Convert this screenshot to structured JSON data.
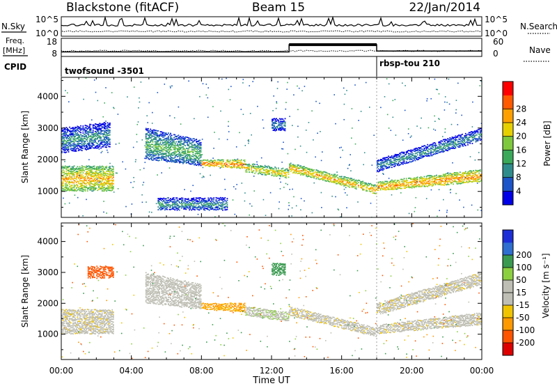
{
  "header": {
    "title": "Blackstone (fitACF)",
    "beam": "Beam 15",
    "date": "22/Jan/2014"
  },
  "noise_panel": {
    "left_label": "N.Sky",
    "right_label": "N.Search",
    "left_ticks": [
      "10^5",
      "10^0"
    ],
    "right_ticks": [
      "10^5",
      "10^0"
    ]
  },
  "freq_panel": {
    "label_top": "Freq.",
    "label_unit": "[MHz]",
    "left_ticks": [
      "18",
      "8"
    ],
    "right_ticks": [
      "60",
      "0"
    ],
    "right_label": "Nave"
  },
  "cpid_panel": {
    "label": "CPID",
    "programs": [
      "twofsound -3501",
      "rbsp-tou 210"
    ]
  },
  "time_axis": {
    "label": "Time UT",
    "ticks": [
      "00:00",
      "04:00",
      "08:00",
      "12:00",
      "16:00",
      "20:00",
      "00:00"
    ]
  },
  "range_axis": {
    "label": "Slant Range [km]",
    "ticks": [
      "1000",
      "2000",
      "3000",
      "4000"
    ]
  },
  "power_scale": {
    "label": "Power [dB]",
    "ticks": [
      "4",
      "8",
      "12",
      "16",
      "20",
      "24",
      "28"
    ],
    "colors": [
      "#0000e6",
      "#1c55c8",
      "#2f8c8c",
      "#3aaa5a",
      "#7dc83c",
      "#e6d000",
      "#ffa000",
      "#ff5a00",
      "#ff0000"
    ]
  },
  "velocity_scale": {
    "label": "Velocity [m s⁻¹]",
    "ticks": [
      "-200",
      "-100",
      "-50",
      "-15",
      "15",
      "50",
      "100",
      "200"
    ],
    "colors": [
      "#dd0000",
      "#ff5500",
      "#ff9900",
      "#f0c400",
      "#bebeb4",
      "#bebeb4",
      "#8cd040",
      "#3a9a50",
      "#2e6fd0",
      "#1c2fd6"
    ]
  },
  "chart_data": [
    {
      "type": "heatmap",
      "name": "power",
      "xlabel": "Time UT",
      "ylabel": "Slant Range [km]",
      "xlim": [
        0,
        24
      ],
      "ylim": [
        180,
        4600
      ],
      "colorbar_label": "Power [dB]",
      "features": [
        {
          "t": [
            0.0,
            3.0
          ],
          "range_start": [
            1000,
            1800
          ],
          "range_end": [
            1000,
            1800
          ],
          "power_db": 24
        },
        {
          "t": [
            0.0,
            2.8
          ],
          "range_start": [
            2200,
            3000
          ],
          "range_end": [
            2400,
            3200
          ],
          "power_db": 10
        },
        {
          "t": [
            4.8,
            8.0
          ],
          "range_start": [
            2000,
            3000
          ],
          "range_end": [
            1800,
            2600
          ],
          "power_db": 14
        },
        {
          "t": [
            8.0,
            10.5
          ],
          "range_start": [
            1800,
            2000
          ],
          "range_end": [
            1700,
            2000
          ],
          "power_db": 27
        },
        {
          "t": [
            10.5,
            13.0
          ],
          "range_start": [
            1600,
            1900
          ],
          "range_end": [
            1400,
            1700
          ],
          "power_db": 22
        },
        {
          "t": [
            13.0,
            18.0
          ],
          "range_start": [
            1600,
            1900
          ],
          "range_end": [
            900,
            1200
          ],
          "power_db": 24
        },
        {
          "t": [
            18.0,
            24.0
          ],
          "range_start": [
            1000,
            1300
          ],
          "range_end": [
            1300,
            1700
          ],
          "power_db": 26
        },
        {
          "t": [
            18.0,
            24.0
          ],
          "range_start": [
            1600,
            2000
          ],
          "range_end": [
            2600,
            3000
          ],
          "power_db": 10
        },
        {
          "t": [
            12.0,
            12.8
          ],
          "range_start": [
            2900,
            3300
          ],
          "range_end": [
            2900,
            3300
          ],
          "power_db": 8
        },
        {
          "t": [
            5.5,
            9.5
          ],
          "range_start": [
            400,
            800
          ],
          "range_end": [
            400,
            800
          ],
          "power_db": 10
        }
      ]
    },
    {
      "type": "heatmap",
      "name": "velocity",
      "xlabel": "Time UT",
      "ylabel": "Slant Range [km]",
      "xlim": [
        0,
        24
      ],
      "ylim": [
        180,
        4600
      ],
      "colorbar_label": "Velocity [m s⁻¹]",
      "features": [
        {
          "t": [
            0.0,
            3.0
          ],
          "range_start": [
            1000,
            1800
          ],
          "range_end": [
            1000,
            1800
          ],
          "velocity": 0
        },
        {
          "t": [
            1.5,
            3.0
          ],
          "range_start": [
            2800,
            3200
          ],
          "range_end": [
            2800,
            3200
          ],
          "velocity": -180
        },
        {
          "t": [
            4.8,
            8.0
          ],
          "range_start": [
            2000,
            3000
          ],
          "range_end": [
            1800,
            2600
          ],
          "velocity": 30
        },
        {
          "t": [
            8.0,
            10.5
          ],
          "range_start": [
            1800,
            2000
          ],
          "range_end": [
            1700,
            2000
          ],
          "velocity": -60
        },
        {
          "t": [
            10.5,
            13.0
          ],
          "range_start": [
            1600,
            1900
          ],
          "range_end": [
            1400,
            1700
          ],
          "velocity": 40
        },
        {
          "t": [
            13.0,
            18.0
          ],
          "range_start": [
            1600,
            1900
          ],
          "range_end": [
            900,
            1200
          ],
          "velocity": 0
        },
        {
          "t": [
            18.0,
            24.0
          ],
          "range_start": [
            1000,
            1300
          ],
          "range_end": [
            1300,
            1700
          ],
          "velocity": 0
        },
        {
          "t": [
            18.0,
            24.0
          ],
          "range_start": [
            1600,
            2000
          ],
          "range_end": [
            2600,
            3000
          ],
          "velocity": 0
        },
        {
          "t": [
            12.0,
            12.8
          ],
          "range_start": [
            2900,
            3300
          ],
          "range_end": [
            2900,
            3300
          ],
          "velocity": 150
        }
      ]
    },
    {
      "type": "line",
      "name": "frequency",
      "x": [
        0,
        13.0,
        13.0,
        18.0,
        18.0,
        24
      ],
      "y": [
        10.5,
        10.5,
        14.5,
        14.5,
        11.0,
        11.0
      ],
      "ylabel": "Freq. [MHz]",
      "ylim": [
        8,
        18
      ]
    }
  ]
}
